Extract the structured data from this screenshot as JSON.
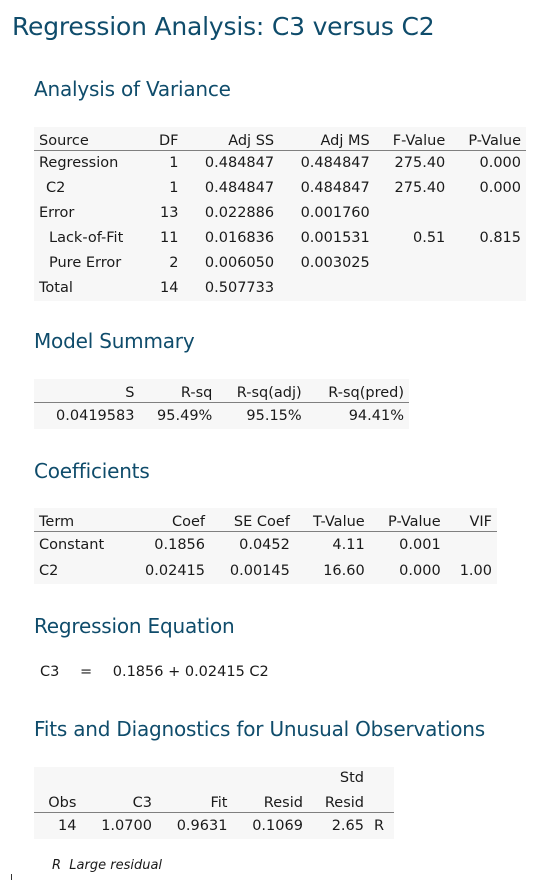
{
  "title": "Regression Analysis: C3 versus C2",
  "anova": {
    "heading": "Analysis of Variance",
    "columns": [
      "Source",
      "DF",
      "Adj SS",
      "Adj MS",
      "F-Value",
      "P-Value"
    ],
    "rows": [
      [
        "Regression",
        "1",
        "0.484847",
        "0.484847",
        "275.40",
        "0.000"
      ],
      [
        "C2",
        "1",
        "0.484847",
        "0.484847",
        "275.40",
        "0.000"
      ],
      [
        "Error",
        "13",
        "0.022886",
        "0.001760",
        "",
        ""
      ],
      [
        "Lack-of-Fit",
        "11",
        "0.016836",
        "0.001531",
        "0.51",
        "0.815"
      ],
      [
        "Pure Error",
        "2",
        "0.006050",
        "0.003025",
        "",
        ""
      ],
      [
        "Total",
        "14",
        "0.507733",
        "",
        "",
        ""
      ]
    ]
  },
  "model_summary": {
    "heading": "Model Summary",
    "columns": [
      "S",
      "R-sq",
      "R-sq(adj)",
      "R-sq(pred)"
    ],
    "row": [
      "0.0419583",
      "95.49%",
      "95.15%",
      "94.41%"
    ]
  },
  "coefficients": {
    "heading": "Coefficients",
    "columns": [
      "Term",
      "Coef",
      "SE Coef",
      "T-Value",
      "P-Value",
      "VIF"
    ],
    "rows": [
      [
        "Constant",
        "0.1856",
        "0.0452",
        "4.11",
        "0.001",
        ""
      ],
      [
        "C2",
        "0.02415",
        "0.00145",
        "16.60",
        "0.000",
        "1.00"
      ]
    ]
  },
  "regression_equation": {
    "heading": "Regression Equation",
    "lhs": "C3",
    "equals": "=",
    "rhs": "0.1856 + 0.02415 C2"
  },
  "unusual": {
    "heading": "Fits and Diagnostics for Unusual Observations",
    "header_top": "Std",
    "columns": [
      "Obs",
      "C3",
      "Fit",
      "Resid",
      "Resid",
      ""
    ],
    "row": [
      "14",
      "1.0700",
      "0.9631",
      "0.1069",
      "2.65",
      "R"
    ],
    "footnote": "R  Large residual"
  }
}
